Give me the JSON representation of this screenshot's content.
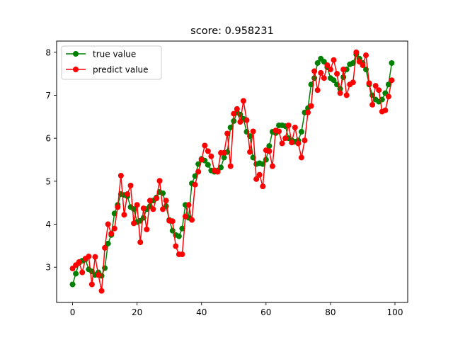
{
  "chart_data": {
    "type": "line",
    "title": "score: 0.958231",
    "xlabel": "",
    "ylabel": "",
    "xlim": [
      -4.95,
      103.95
    ],
    "ylim": [
      2.18,
      8.26
    ],
    "xticks": [
      0,
      20,
      40,
      60,
      80,
      100
    ],
    "yticks": [
      3,
      4,
      5,
      6,
      7,
      8
    ],
    "grid": false,
    "legend_position": "top-left",
    "series": [
      {
        "name": "true value",
        "color": "#008000",
        "marker": "circle",
        "x": [
          0,
          1,
          2,
          3,
          4,
          5,
          6,
          7,
          8,
          9,
          10,
          11,
          12,
          13,
          14,
          15,
          16,
          17,
          18,
          19,
          20,
          21,
          22,
          23,
          24,
          25,
          26,
          27,
          28,
          29,
          30,
          31,
          32,
          33,
          34,
          35,
          36,
          37,
          38,
          39,
          40,
          41,
          42,
          43,
          44,
          45,
          46,
          47,
          48,
          49,
          50,
          51,
          52,
          53,
          54,
          55,
          56,
          57,
          58,
          59,
          60,
          61,
          62,
          63,
          64,
          65,
          66,
          67,
          68,
          69,
          70,
          71,
          72,
          73,
          74,
          75,
          76,
          77,
          78,
          79,
          80,
          81,
          82,
          83,
          84,
          85,
          86,
          87,
          88,
          89,
          90,
          91,
          92,
          93,
          94,
          95,
          96,
          97,
          98,
          99
        ],
        "values": [
          2.6,
          2.85,
          3.1,
          3.15,
          3.18,
          2.95,
          2.9,
          2.82,
          2.88,
          2.8,
          2.98,
          3.55,
          3.75,
          4.25,
          4.45,
          4.7,
          4.68,
          4.65,
          4.4,
          4.35,
          4.05,
          4.08,
          4.15,
          4.35,
          4.42,
          4.55,
          4.62,
          4.75,
          4.72,
          4.42,
          4.1,
          3.85,
          3.75,
          3.72,
          3.9,
          4.45,
          4.15,
          4.95,
          5.12,
          5.4,
          5.52,
          5.48,
          5.38,
          5.25,
          5.22,
          5.25,
          5.32,
          5.55,
          5.68,
          6.25,
          6.4,
          6.6,
          6.55,
          6.45,
          6.15,
          6.05,
          5.55,
          5.4,
          5.42,
          5.4,
          5.5,
          5.82,
          6.15,
          6.12,
          6.3,
          6.3,
          6.28,
          6.0,
          5.95,
          5.92,
          5.95,
          6.15,
          6.6,
          6.7,
          7.25,
          7.4,
          7.75,
          7.85,
          7.78,
          7.65,
          7.4,
          7.35,
          7.25,
          7.15,
          7.42,
          7.6,
          7.72,
          7.75,
          7.95,
          7.85,
          7.75,
          7.6,
          7.25,
          7.0,
          6.9,
          6.85,
          6.9,
          7.05,
          7.25,
          7.75
        ]
      },
      {
        "name": "predict value",
        "color": "#ff0000",
        "marker": "circle",
        "x": [
          0,
          1,
          2,
          3,
          4,
          5,
          6,
          7,
          8,
          9,
          10,
          11,
          12,
          13,
          14,
          15,
          16,
          17,
          18,
          19,
          20,
          21,
          22,
          23,
          24,
          25,
          26,
          27,
          28,
          29,
          30,
          31,
          32,
          33,
          34,
          35,
          36,
          37,
          38,
          39,
          40,
          41,
          42,
          43,
          44,
          45,
          46,
          47,
          48,
          49,
          50,
          51,
          52,
          53,
          54,
          55,
          56,
          57,
          58,
          59,
          60,
          61,
          62,
          63,
          64,
          65,
          66,
          67,
          68,
          69,
          70,
          71,
          72,
          73,
          74,
          75,
          76,
          77,
          78,
          79,
          80,
          81,
          82,
          83,
          84,
          85,
          86,
          87,
          88,
          89,
          90,
          91,
          92,
          93,
          94,
          95,
          96,
          97,
          98,
          99
        ],
        "values": [
          2.97,
          3.05,
          3.12,
          2.88,
          3.2,
          3.25,
          2.6,
          3.24,
          2.82,
          2.45,
          3.45,
          4.0,
          3.78,
          3.9,
          4.4,
          5.13,
          4.22,
          4.7,
          4.9,
          4.02,
          4.45,
          3.58,
          4.37,
          3.88,
          4.55,
          4.35,
          4.6,
          5.01,
          4.35,
          4.55,
          4.08,
          4.07,
          3.49,
          3.3,
          3.3,
          4.18,
          4.45,
          4.1,
          4.92,
          5.22,
          5.5,
          5.83,
          5.7,
          5.58,
          5.25,
          5.22,
          5.66,
          5.66,
          6.11,
          5.35,
          6.57,
          6.68,
          6.38,
          6.87,
          6.42,
          5.68,
          6.16,
          5.05,
          5.15,
          4.88,
          5.72,
          5.7,
          5.35,
          6.18,
          6.16,
          5.88,
          6.0,
          6.3,
          5.9,
          6.25,
          5.88,
          5.55,
          5.95,
          6.6,
          6.75,
          7.56,
          7.12,
          7.52,
          7.4,
          7.7,
          7.6,
          7.82,
          7.5,
          7.05,
          7.6,
          7.0,
          7.25,
          7.3,
          8.0,
          7.78,
          7.7,
          7.93,
          7.28,
          6.78,
          7.22,
          7.12,
          6.62,
          6.65,
          6.97,
          7.35
        ]
      }
    ]
  }
}
